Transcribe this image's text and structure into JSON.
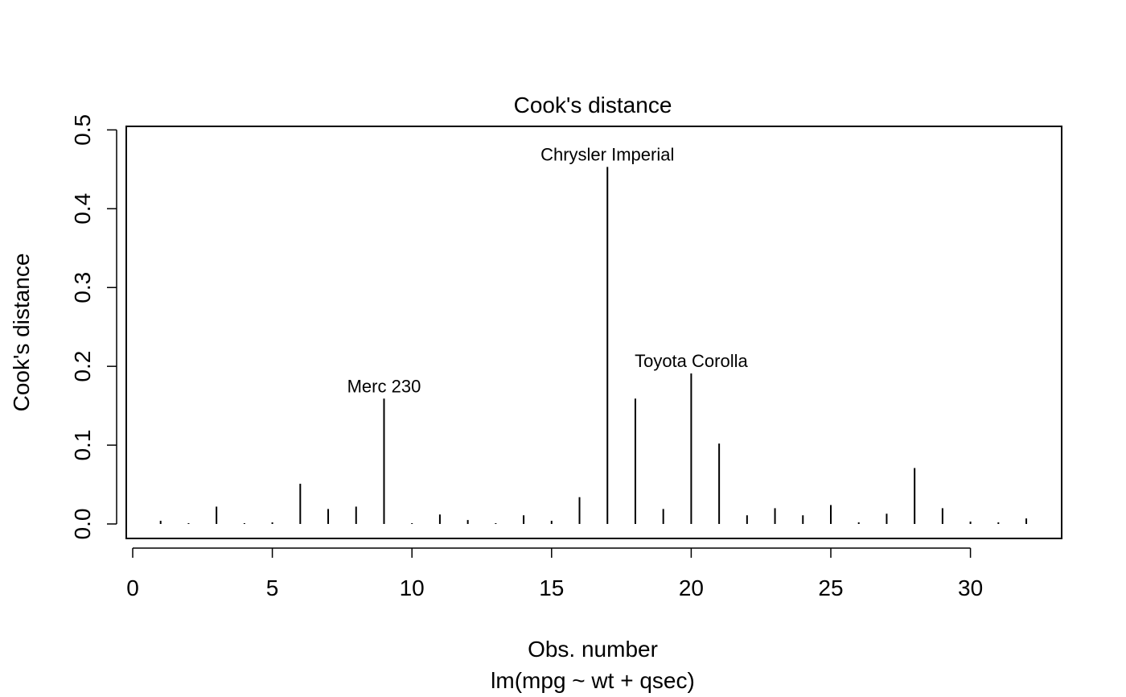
{
  "chart_data": {
    "type": "bar",
    "title": "Cook's distance",
    "xlabel": "Obs. number",
    "subtitle": "lm(mpg ~ wt + qsec)",
    "ylabel": "Cook's distance",
    "xlim": [
      0,
      32
    ],
    "ylim": [
      0,
      0.5
    ],
    "xticks": [
      "0",
      "5",
      "10",
      "15",
      "20",
      "25",
      "30"
    ],
    "yticks": [
      "0.0",
      "0.1",
      "0.2",
      "0.3",
      "0.4",
      "0.5"
    ],
    "x": [
      1,
      2,
      3,
      4,
      5,
      6,
      7,
      8,
      9,
      10,
      11,
      12,
      13,
      14,
      15,
      16,
      17,
      18,
      19,
      20,
      21,
      22,
      23,
      24,
      25,
      26,
      27,
      28,
      29,
      30,
      31,
      32
    ],
    "values": [
      0.004,
      0.001,
      0.022,
      0.001,
      0.002,
      0.051,
      0.019,
      0.022,
      0.159,
      0.001,
      0.012,
      0.005,
      0.001,
      0.011,
      0.004,
      0.034,
      0.453,
      0.159,
      0.019,
      0.191,
      0.102,
      0.011,
      0.02,
      0.011,
      0.024,
      0.002,
      0.013,
      0.071,
      0.02,
      0.003,
      0.002,
      0.007
    ],
    "annotations": [
      {
        "x": 9,
        "label": "Merc 230"
      },
      {
        "x": 17,
        "label": "Chrysler Imperial"
      },
      {
        "x": 20,
        "label": "Toyota Corolla"
      }
    ],
    "grid": false
  }
}
